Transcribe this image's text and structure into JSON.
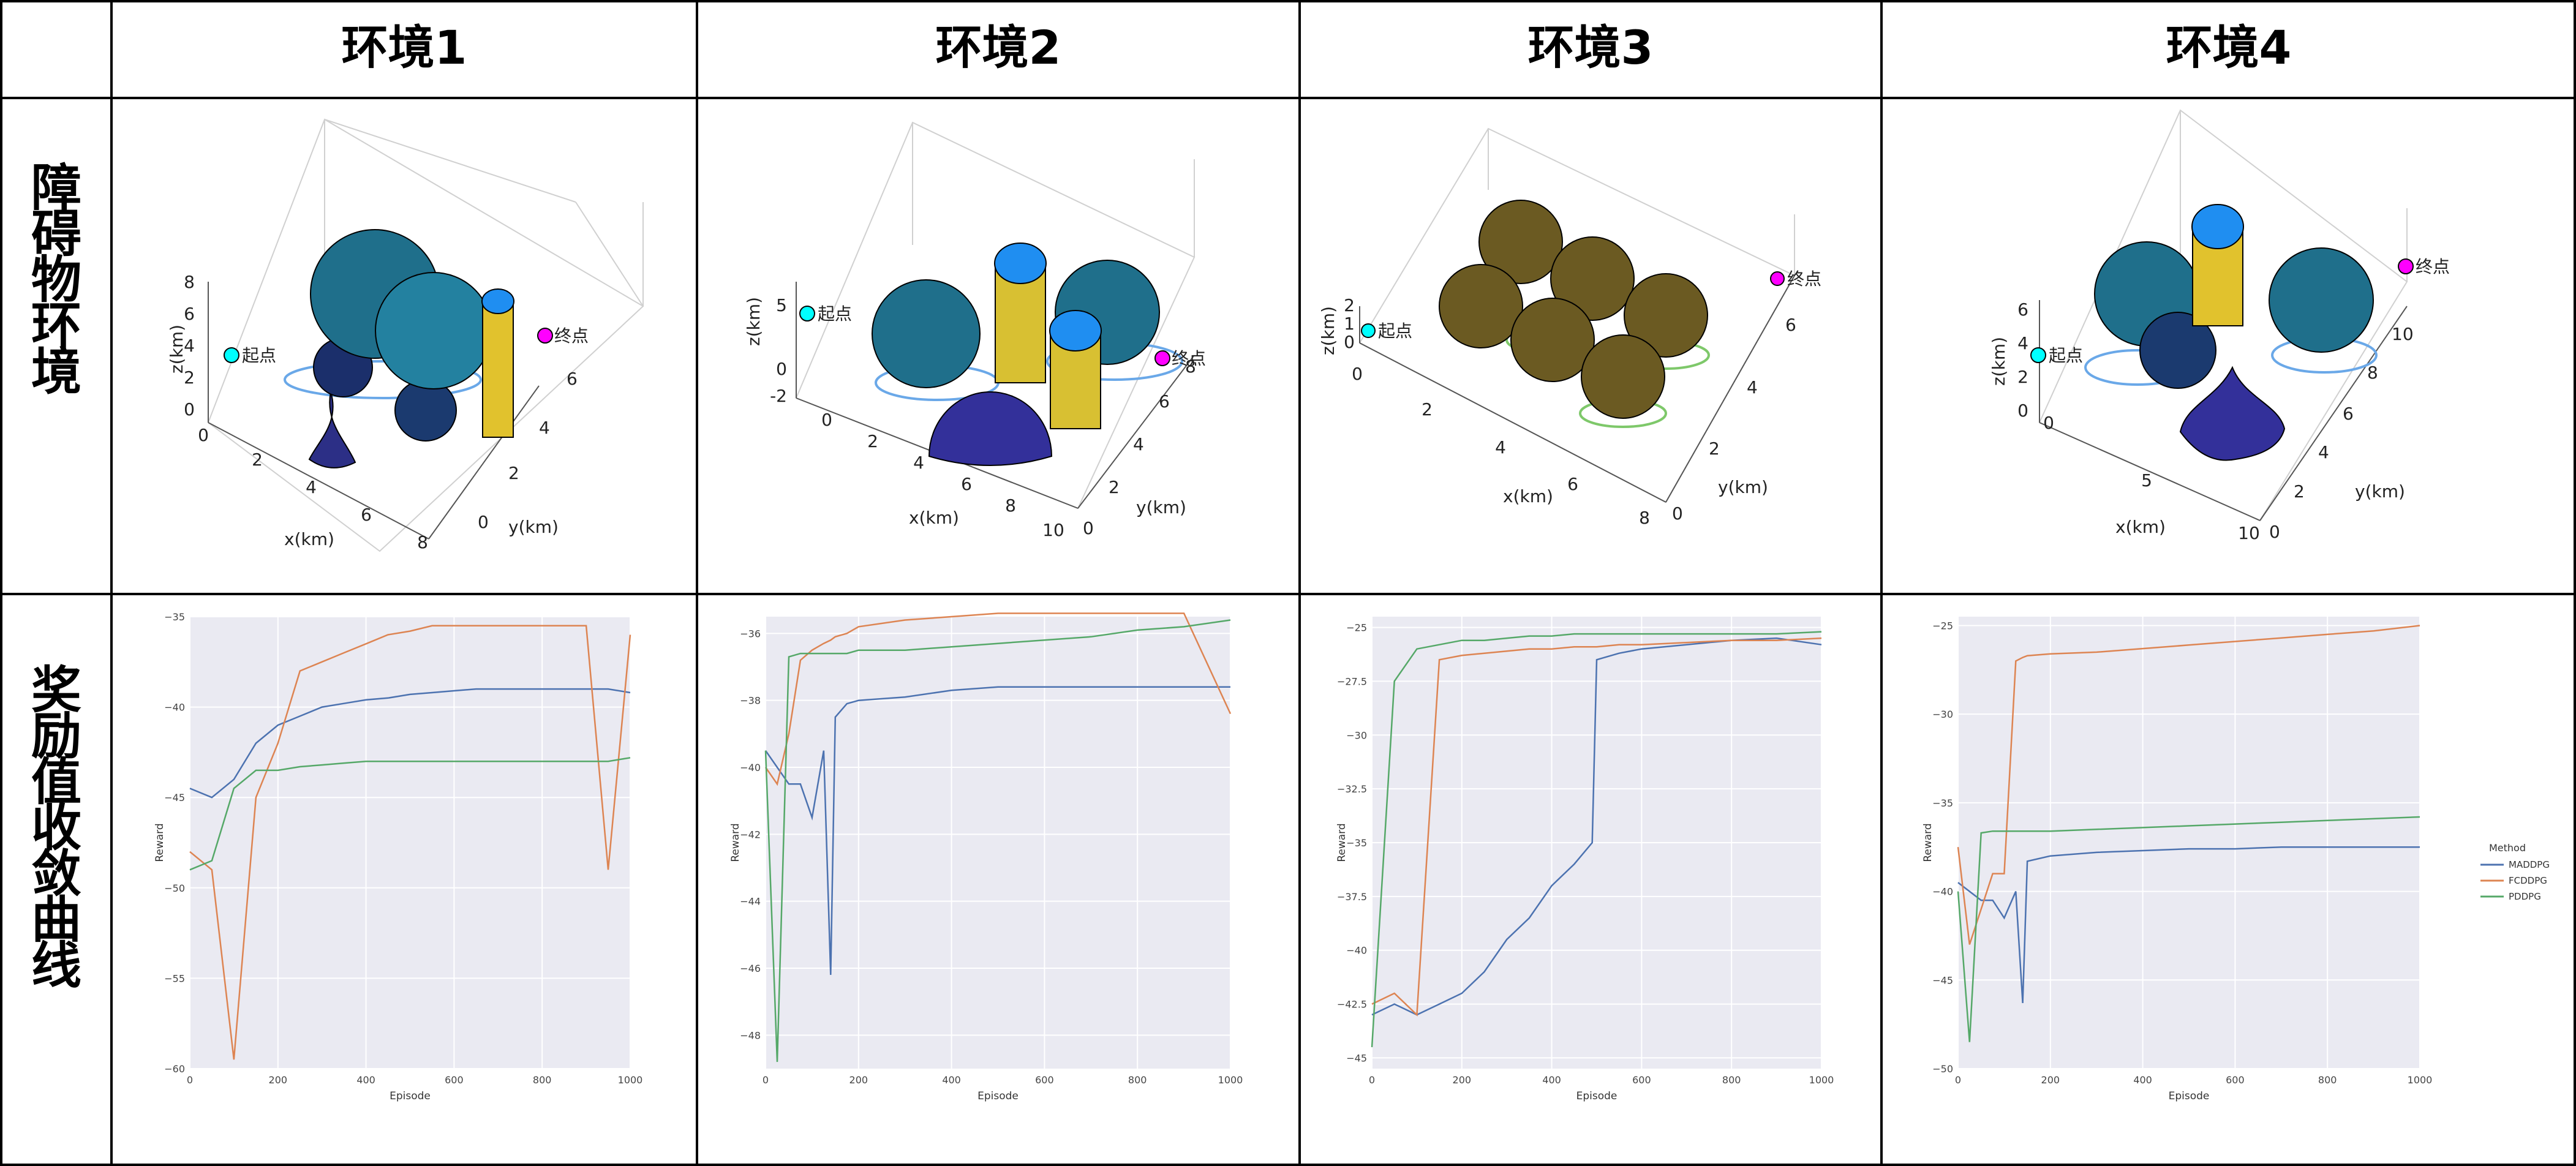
{
  "headers": [
    "环境1",
    "环境2",
    "环境3",
    "环境4"
  ],
  "row_labels": [
    "障碍物环境",
    "奖励值收敛曲线"
  ],
  "colors": {
    "madddpg": "#4c72b0",
    "fcddpg": "#dd8452",
    "pddpg": "#55a868",
    "plot_bg": "#eaeaf2",
    "start_marker": "#00ffff",
    "end_marker": "#ff00ff",
    "cylinder_top": "#1f8ef1"
  },
  "env_plots": [
    {
      "start_label": "起点",
      "end_label": "终点",
      "xlabel": "x(km)",
      "ylabel": "y(km)",
      "zlabel": "z(km)",
      "xticks": [
        "0",
        "2",
        "4",
        "6",
        "8"
      ],
      "yticks": [
        "0",
        "2",
        "4",
        "6"
      ],
      "zticks": [
        "0",
        "2",
        "4",
        "6",
        "8"
      ]
    },
    {
      "start_label": "起点",
      "end_label": "终点",
      "xlabel": "x(km)",
      "ylabel": "y(km)",
      "zlabel": "z(km)",
      "xticks": [
        "0",
        "2",
        "4",
        "6",
        "8",
        "10"
      ],
      "yticks": [
        "0",
        "2",
        "4",
        "6",
        "8"
      ],
      "zticks": [
        "-2",
        "0",
        "5"
      ]
    },
    {
      "start_label": "起点",
      "end_label": "终点",
      "xlabel": "x(km)",
      "ylabel": "y(km)",
      "zlabel": "z(km)",
      "xticks": [
        "0",
        "2",
        "4",
        "6",
        "8"
      ],
      "yticks": [
        "0",
        "2",
        "4",
        "6"
      ],
      "zticks": [
        "0",
        "1",
        "2"
      ]
    },
    {
      "start_label": "起点",
      "end_label": "终点",
      "xlabel": "x(km)",
      "ylabel": "y(km)",
      "zlabel": "z(km)",
      "xticks": [
        "0",
        "5",
        "10"
      ],
      "yticks": [
        "0",
        "2",
        "4",
        "6",
        "8",
        "10"
      ],
      "zticks": [
        "0",
        "2",
        "4",
        "6"
      ]
    }
  ],
  "chart_data": [
    {
      "type": "line",
      "xlabel": "Episode",
      "ylabel": "Reward",
      "xlim": [
        0,
        1000
      ],
      "ylim": [
        -60,
        -35
      ],
      "xticks": [
        0,
        200,
        400,
        600,
        800,
        1000
      ],
      "yticks": [
        -35,
        -40,
        -45,
        -50,
        -55,
        -60
      ],
      "x": [
        0,
        50,
        100,
        150,
        200,
        250,
        300,
        350,
        400,
        450,
        500,
        550,
        600,
        650,
        700,
        750,
        800,
        850,
        900,
        950,
        1000
      ],
      "series": [
        {
          "values": [
            -44.5,
            -45,
            -44,
            -42,
            -41,
            -40.5,
            -40,
            -39.8,
            -39.6,
            -39.5,
            -39.3,
            -39.2,
            -39.1,
            -39,
            -39,
            -39,
            -39,
            -39,
            -39,
            -39,
            -39.2
          ]
        },
        {
          "values": [
            -48,
            -49,
            -59.5,
            -45,
            -42,
            -38,
            -37.5,
            -37,
            -36.5,
            -36,
            -35.8,
            -35.5,
            -35.5,
            -35.5,
            -35.5,
            -35.5,
            -35.5,
            -35.5,
            -35.5,
            -49,
            -36
          ]
        },
        {
          "values": [
            -49,
            -48.5,
            -44.5,
            -43.5,
            -43.5,
            -43.3,
            -43.2,
            -43.1,
            -43,
            -43,
            -43,
            -43,
            -43,
            -43,
            -43,
            -43,
            -43,
            -43,
            -43,
            -43,
            -42.8
          ]
        }
      ]
    },
    {
      "type": "line",
      "xlabel": "Episode",
      "ylabel": "Reward",
      "xlim": [
        0,
        1000
      ],
      "ylim": [
        -49,
        -35.5
      ],
      "xticks": [
        0,
        200,
        400,
        600,
        800,
        1000
      ],
      "yticks": [
        -36,
        -38,
        -40,
        -42,
        -44,
        -46,
        -48
      ],
      "x": [
        0,
        25,
        50,
        75,
        100,
        125,
        140,
        150,
        175,
        200,
        300,
        400,
        500,
        600,
        700,
        800,
        900,
        1000
      ],
      "series": [
        {
          "values": [
            -39.5,
            -40,
            -40.5,
            -40.5,
            -41.5,
            -39.5,
            -46.2,
            -38.5,
            -38.1,
            -38,
            -37.9,
            -37.7,
            -37.6,
            -37.6,
            -37.6,
            -37.6,
            -37.6,
            -37.6
          ]
        },
        {
          "values": [
            -40,
            -40.5,
            -39,
            -36.8,
            -36.5,
            -36.3,
            -36.2,
            -36.1,
            -36,
            -35.8,
            -35.6,
            -35.5,
            -35.4,
            -35.4,
            -35.4,
            -35.4,
            -35.4,
            -38.4
          ]
        },
        {
          "values": [
            -39.5,
            -48.8,
            -36.7,
            -36.6,
            -36.6,
            -36.6,
            -36.6,
            -36.6,
            -36.6,
            -36.5,
            -36.5,
            -36.4,
            -36.3,
            -36.2,
            -36.1,
            -35.9,
            -35.8,
            -35.6
          ]
        }
      ]
    },
    {
      "type": "line",
      "xlabel": "Episode",
      "ylabel": "Reward",
      "xlim": [
        0,
        1000
      ],
      "ylim": [
        -45.5,
        -24.5
      ],
      "xticks": [
        0,
        200,
        400,
        600,
        800,
        1000
      ],
      "yticks": [
        -25,
        -27.5,
        -30,
        -32.5,
        -35,
        -37.5,
        -40,
        -42.5,
        -45
      ],
      "x": [
        0,
        50,
        100,
        150,
        200,
        250,
        300,
        350,
        400,
        450,
        490,
        500,
        550,
        600,
        700,
        800,
        900,
        1000
      ],
      "series": [
        {
          "values": [
            -43,
            -42.5,
            -43,
            -42.5,
            -42,
            -41,
            -39.5,
            -38.5,
            -37,
            -36,
            -35,
            -26.5,
            -26.2,
            -26,
            -25.8,
            -25.6,
            -25.5,
            -25.8
          ]
        },
        {
          "values": [
            -42.5,
            -42,
            -43,
            -26.5,
            -26.3,
            -26.2,
            -26.1,
            -26,
            -26,
            -25.9,
            -25.9,
            -25.9,
            -25.8,
            -25.8,
            -25.7,
            -25.6,
            -25.6,
            -25.5
          ]
        },
        {
          "values": [
            -44.5,
            -27.5,
            -26,
            -25.8,
            -25.6,
            -25.6,
            -25.5,
            -25.4,
            -25.4,
            -25.3,
            -25.3,
            -25.3,
            -25.3,
            -25.3,
            -25.3,
            -25.3,
            -25.3,
            -25.2
          ]
        }
      ]
    },
    {
      "type": "line",
      "xlabel": "Episode",
      "ylabel": "Reward",
      "xlim": [
        0,
        1000
      ],
      "ylim": [
        -50,
        -24.5
      ],
      "xticks": [
        0,
        200,
        400,
        600,
        800,
        1000
      ],
      "yticks": [
        -25,
        -30,
        -35,
        -40,
        -45,
        -50
      ],
      "x": [
        0,
        25,
        50,
        75,
        100,
        125,
        140,
        150,
        200,
        300,
        400,
        500,
        600,
        700,
        800,
        900,
        1000
      ],
      "series": [
        {
          "values": [
            -39.5,
            -40,
            -40.5,
            -40.5,
            -41.5,
            -40,
            -46.3,
            -38.3,
            -38,
            -37.8,
            -37.7,
            -37.6,
            -37.6,
            -37.5,
            -37.5,
            -37.5,
            -37.5
          ]
        },
        {
          "values": [
            -37.5,
            -43,
            -41,
            -39,
            -39,
            -27,
            -26.8,
            -26.7,
            -26.6,
            -26.5,
            -26.3,
            -26.1,
            -25.9,
            -25.7,
            -25.5,
            -25.3,
            -25
          ]
        },
        {
          "values": [
            -40,
            -48.5,
            -36.7,
            -36.6,
            -36.6,
            -36.6,
            -36.6,
            -36.6,
            -36.6,
            -36.5,
            -36.4,
            -36.3,
            -36.2,
            -36.1,
            -36,
            -35.9,
            -35.8
          ]
        }
      ],
      "legend": {
        "title": "Method",
        "entries": [
          "MADDPG",
          "FCDDPG",
          "PDDPG"
        ],
        "placement": "right-outside"
      }
    }
  ]
}
